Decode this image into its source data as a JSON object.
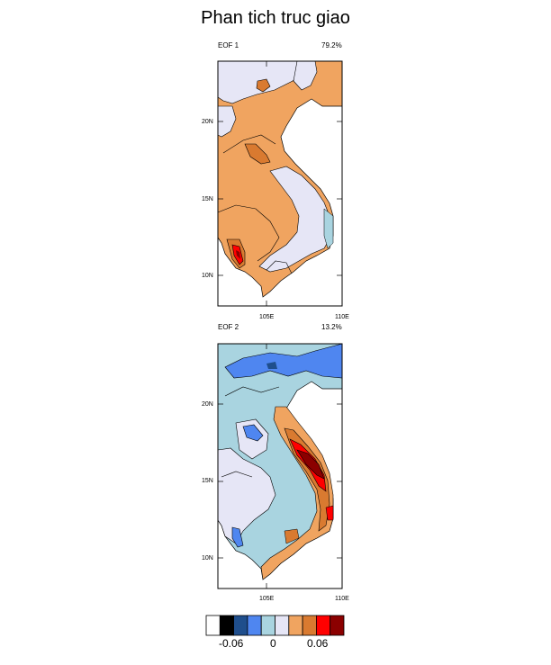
{
  "title": "Phan tich truc giao",
  "panels": [
    {
      "name": "EOF 1",
      "variance": "79.2%",
      "lat_ticks": [
        "20N",
        "15N",
        "10N"
      ],
      "lon_ticks": [
        "105E",
        "110E"
      ]
    },
    {
      "name": "EOF 2",
      "variance": "13.2%",
      "lat_ticks": [
        "20N",
        "15N",
        "10N"
      ],
      "lon_ticks": [
        "105E",
        "110E"
      ]
    }
  ],
  "colorbar": {
    "colors": [
      "#ffffff",
      "#000000",
      "#1f4e8c",
      "#4f86f0",
      "#a9d4e0",
      "#e6e6f6",
      "#f0a460",
      "#d97a30",
      "#ff0000",
      "#8b0000"
    ],
    "labels": [
      "-0.06",
      "0",
      "0.06"
    ]
  },
  "colors": {
    "eof_positive_weak": "#f0a460",
    "eof_positive_mid": "#d97a30",
    "eof_positive_strong": "#ff0000",
    "eof_positive_max": "#8b0000",
    "eof_neutral": "#e6e6f6",
    "eof_negative_weak": "#a9d4e0",
    "eof_negative_mid": "#4f86f0"
  }
}
